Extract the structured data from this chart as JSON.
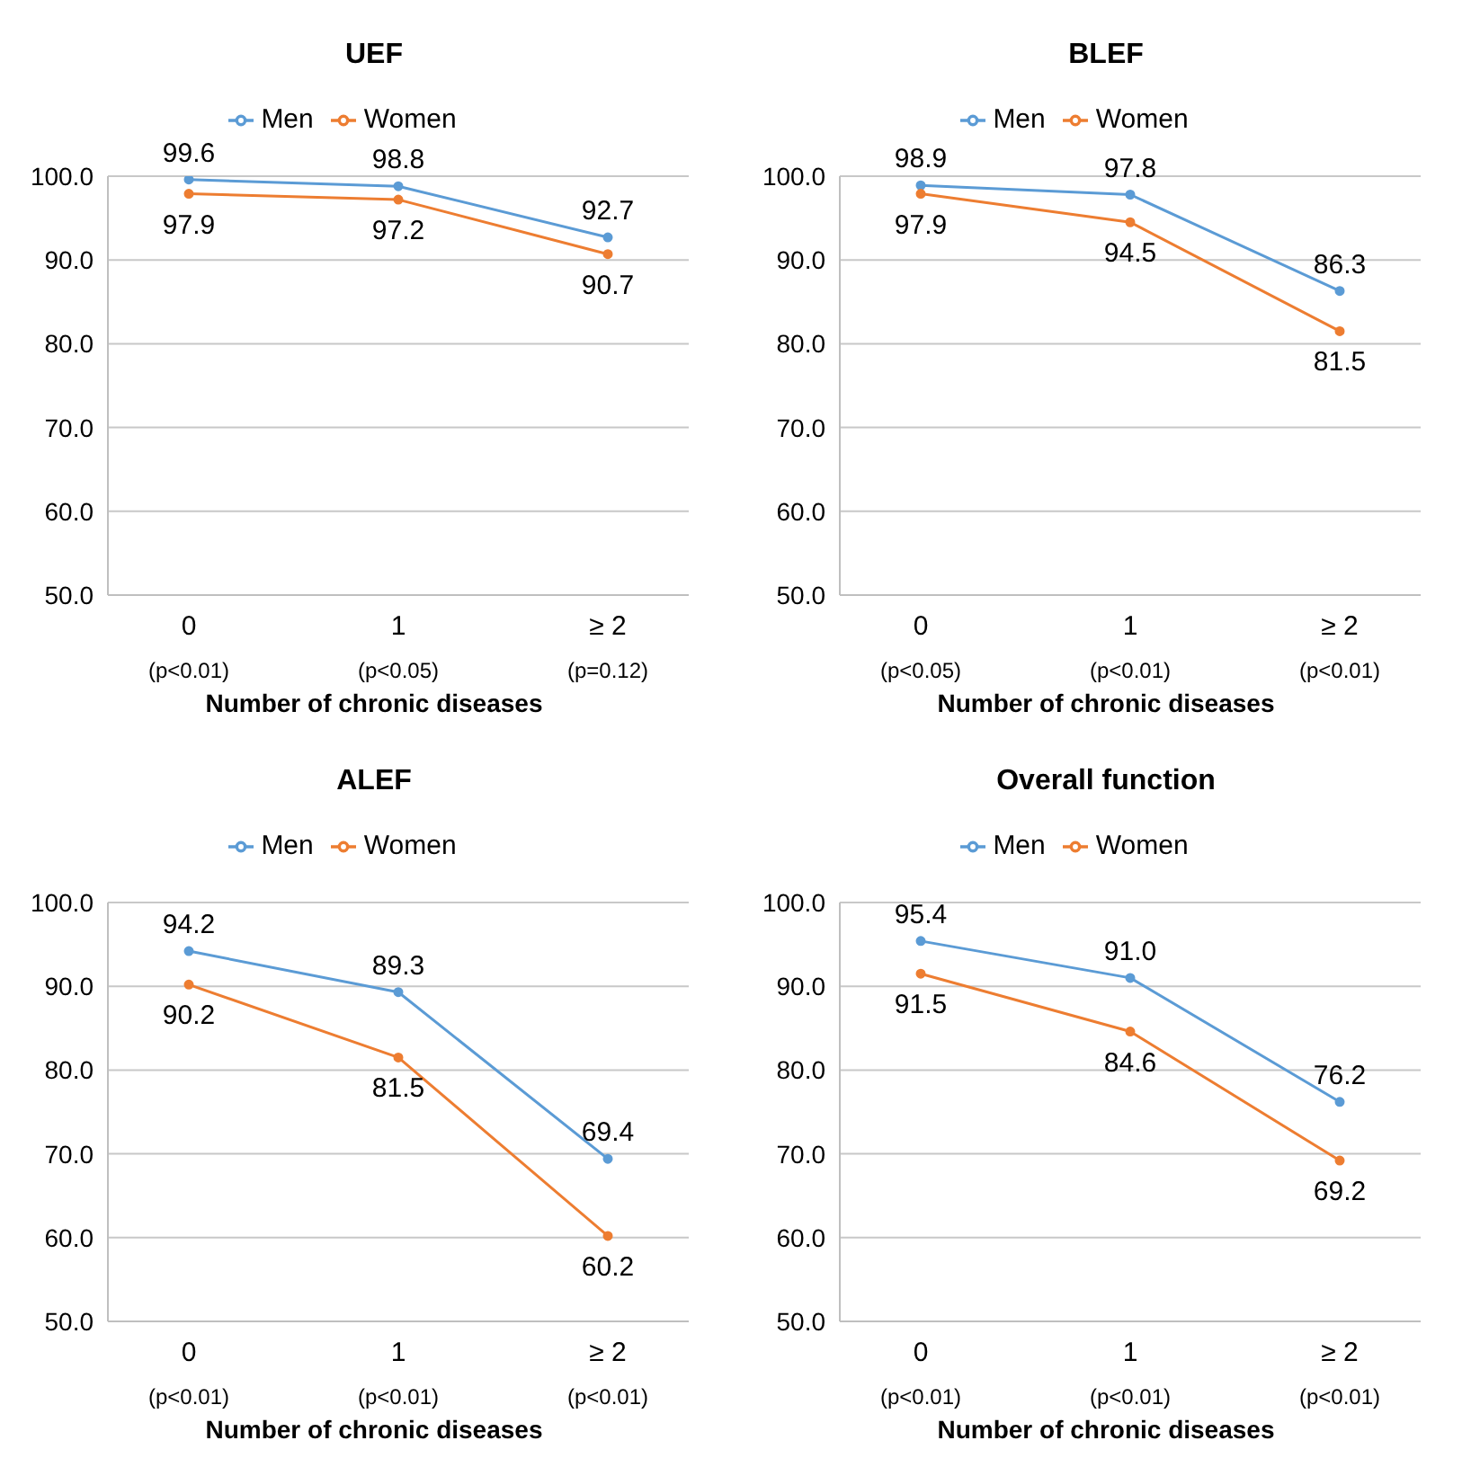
{
  "chart_data": [
    {
      "type": "line",
      "title": "UEF",
      "xlabel": "Number of chronic diseases",
      "categories": [
        "0\n(p<0.01)",
        "1\n(p<0.05)",
        "≥ 2\n(p=0.12)"
      ],
      "series": [
        {
          "name": "Men",
          "color": "#5b9bd5",
          "values": [
            99.6,
            98.8,
            92.7
          ],
          "value_labels": [
            "99.6",
            "98.8",
            "92.7"
          ]
        },
        {
          "name": "Women",
          "color": "#ed7d31",
          "values": [
            97.9,
            97.2,
            90.7
          ],
          "value_labels": [
            "97.9",
            "97.2",
            "90.7"
          ]
        }
      ],
      "ylim": [
        50,
        100
      ],
      "yticks": [
        {
          "value": 50,
          "label": "50.0"
        },
        {
          "value": 60,
          "label": "60.0"
        },
        {
          "value": 70,
          "label": "70.0"
        },
        {
          "value": 80,
          "label": "80.0"
        },
        {
          "value": 90,
          "label": "90.0"
        },
        {
          "value": 100,
          "label": "100.0"
        }
      ],
      "grid": "y",
      "legend": "top",
      "marker": "circle",
      "line_style": "solid"
    },
    {
      "type": "line",
      "title": "BLEF",
      "xlabel": "Number of chronic diseases",
      "categories": [
        "0\n(p<0.05)",
        "1\n(p<0.01)",
        "≥ 2\n(p<0.01)"
      ],
      "series": [
        {
          "name": "Men",
          "color": "#5b9bd5",
          "values": [
            98.9,
            97.8,
            86.3
          ],
          "value_labels": [
            "98.9",
            "97.8",
            "86.3"
          ]
        },
        {
          "name": "Women",
          "color": "#ed7d31",
          "values": [
            97.9,
            94.5,
            81.5
          ],
          "value_labels": [
            "97.9",
            "94.5",
            "81.5"
          ]
        }
      ],
      "ylim": [
        50,
        100
      ],
      "yticks": [
        {
          "value": 50,
          "label": "50.0"
        },
        {
          "value": 60,
          "label": "60.0"
        },
        {
          "value": 70,
          "label": "70.0"
        },
        {
          "value": 80,
          "label": "80.0"
        },
        {
          "value": 90,
          "label": "90.0"
        },
        {
          "value": 100,
          "label": "100.0"
        }
      ],
      "grid": "y",
      "legend": "top",
      "marker": "circle",
      "line_style": "solid"
    },
    {
      "type": "line",
      "title": "ALEF",
      "xlabel": "Number of chronic diseases",
      "categories": [
        "0\n(p<0.01)",
        "1\n(p<0.01)",
        "≥ 2\n(p<0.01)"
      ],
      "series": [
        {
          "name": "Men",
          "color": "#5b9bd5",
          "values": [
            94.2,
            89.3,
            69.4
          ],
          "value_labels": [
            "94.2",
            "89.3",
            "69.4"
          ]
        },
        {
          "name": "Women",
          "color": "#ed7d31",
          "values": [
            90.2,
            81.5,
            60.2
          ],
          "value_labels": [
            "90.2",
            "81.5",
            "60.2"
          ]
        }
      ],
      "ylim": [
        50,
        100
      ],
      "yticks": [
        {
          "value": 50,
          "label": "50.0"
        },
        {
          "value": 60,
          "label": "60.0"
        },
        {
          "value": 70,
          "label": "70.0"
        },
        {
          "value": 80,
          "label": "80.0"
        },
        {
          "value": 90,
          "label": "90.0"
        },
        {
          "value": 100,
          "label": "100.0"
        }
      ],
      "grid": "y",
      "legend": "top",
      "marker": "circle",
      "line_style": "solid"
    },
    {
      "type": "line",
      "title": "Overall function",
      "xlabel": "Number of chronic diseases",
      "categories": [
        "0\n(p<0.01)",
        "1\n(p<0.01)",
        "≥ 2\n(p<0.01)"
      ],
      "series": [
        {
          "name": "Men",
          "color": "#5b9bd5",
          "values": [
            95.4,
            91.0,
            76.2
          ],
          "value_labels": [
            "95.4",
            "91.0",
            "76.2"
          ]
        },
        {
          "name": "Women",
          "color": "#ed7d31",
          "values": [
            91.5,
            84.6,
            69.2
          ],
          "value_labels": [
            "91.5",
            "84.6",
            "69.2"
          ]
        }
      ],
      "ylim": [
        50,
        100
      ],
      "yticks": [
        {
          "value": 50,
          "label": "50.0"
        },
        {
          "value": 60,
          "label": "60.0"
        },
        {
          "value": 70,
          "label": "70.0"
        },
        {
          "value": 80,
          "label": "80.0"
        },
        {
          "value": 90,
          "label": "90.0"
        },
        {
          "value": 100,
          "label": "100.0"
        }
      ],
      "grid": "y",
      "legend": "top",
      "marker": "circle",
      "line_style": "solid"
    }
  ]
}
